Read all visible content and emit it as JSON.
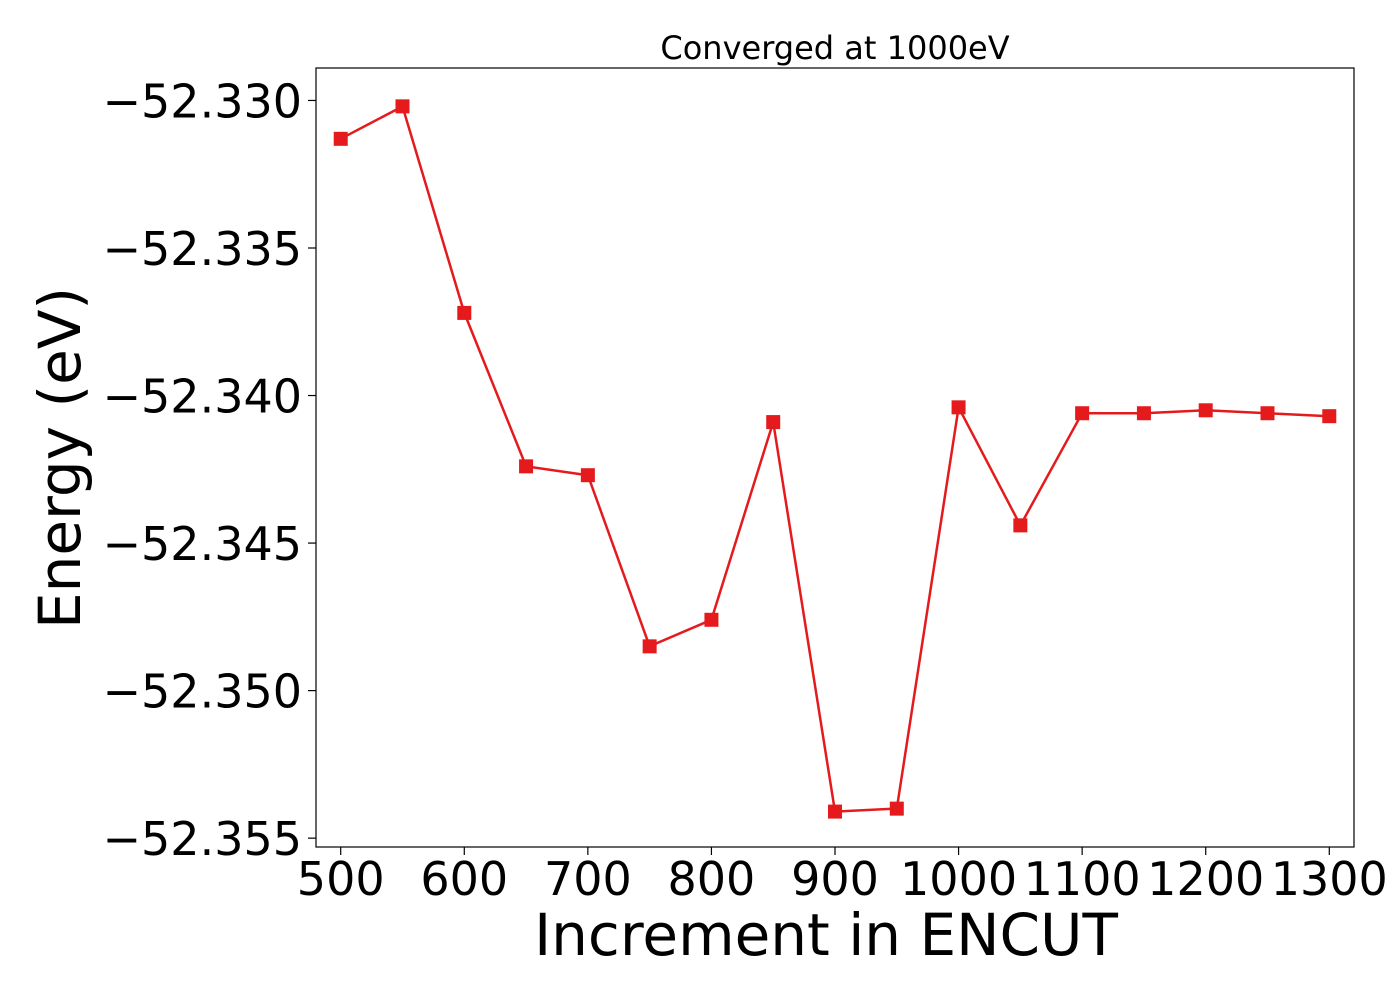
{
  "chart_data": {
    "type": "line",
    "title": "Converged at 1000eV",
    "xlabel": "Increment in ENCUT",
    "ylabel": "Energy (eV)",
    "xlim": [
      480,
      1320
    ],
    "ylim": [
      -52.3553,
      -52.3289
    ],
    "xticks": [
      500,
      600,
      700,
      800,
      900,
      1000,
      1100,
      1200,
      1300
    ],
    "xtick_labels": [
      "500",
      "600",
      "700",
      "800",
      "900",
      "1000",
      "1100",
      "1200",
      "1300"
    ],
    "yticks": [
      -52.33,
      -52.335,
      -52.34,
      -52.345,
      -52.35,
      -52.355
    ],
    "ytick_labels": [
      "−52.330",
      "−52.335",
      "−52.340",
      "−52.345",
      "−52.350",
      "−52.355"
    ],
    "grid": false,
    "series": [
      {
        "color": "#e41a1c",
        "marker": "square",
        "x": [
          500,
          550,
          600,
          650,
          700,
          750,
          800,
          850,
          900,
          950,
          1000,
          1050,
          1100,
          1150,
          1200,
          1250,
          1300
        ],
        "y": [
          -52.3313,
          -52.3302,
          -52.3372,
          -52.3424,
          -52.3427,
          -52.3485,
          -52.3476,
          -52.3409,
          -52.3541,
          -52.354,
          -52.3404,
          -52.3444,
          -52.3406,
          -52.3406,
          -52.3405,
          -52.3406,
          -52.3407
        ]
      }
    ]
  }
}
